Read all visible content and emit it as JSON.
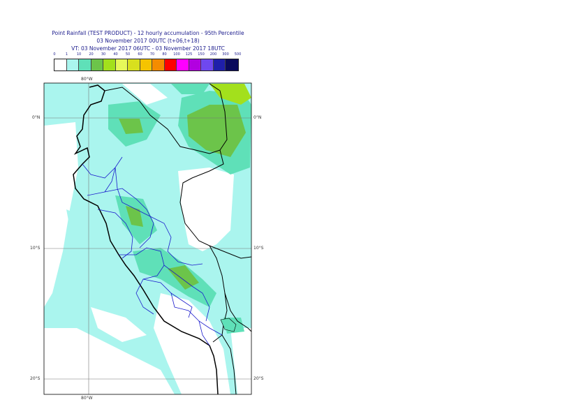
{
  "title": {
    "line1": "Point Rainfall (TEST PRODUCT) - 12 hourly accumulation - 95th Percentile",
    "line2": "03 November 2017 00UTC (t+06,t+18)",
    "line3": "VT: 03 November 2017 06UTC - 03 November 2017 18UTC"
  },
  "legend": {
    "ticks": [
      "0",
      "1",
      "10",
      "20",
      "30",
      "40",
      "50",
      "60",
      "70",
      "80",
      "100",
      "125",
      "150",
      "200",
      "300",
      "500"
    ],
    "colors": [
      "#ffffff",
      "#aaf5ee",
      "#5fe0b8",
      "#6cc44a",
      "#a3e01c",
      "#e6f85a",
      "#d8e01e",
      "#f5c400",
      "#f58c00",
      "#ff0000",
      "#ff00ff",
      "#b200e0",
      "#6f48ef",
      "#1f1faa",
      "#0a0a5c"
    ]
  },
  "axes": {
    "lon_top": "80°W",
    "lon_bottom": "80°W",
    "lat_0_left": "0°N",
    "lat_0_right": "0°N",
    "lat_10_left": "10°S",
    "lat_10_right": "10°S",
    "lat_20_left": "20°S",
    "lat_20_right": "20°S"
  }
}
